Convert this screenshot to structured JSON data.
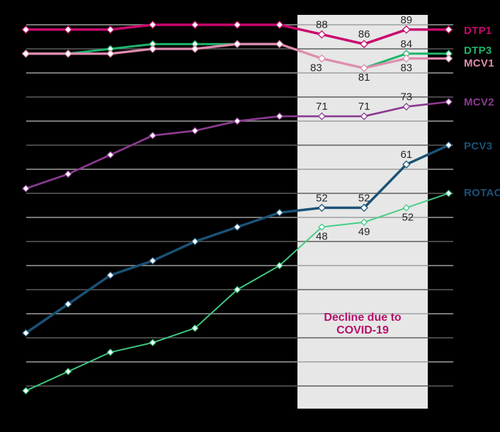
{
  "page": {
    "background_color": "#000000"
  },
  "chart_data": {
    "type": "line",
    "title": "",
    "x_axis": {
      "num_points": 11,
      "tick_labels_visible": false
    },
    "y_axis": {
      "min": 15,
      "max": 90,
      "gridline_step": 5,
      "tick_labels_visible": false,
      "grid_on": true
    },
    "grid": {
      "major_color": "#9f9f9f",
      "minor_color": "#5e5e5e"
    },
    "highlight_band": {
      "meaning": "COVID-19 decline period",
      "color": "#e6e7e6",
      "covers_point_indices": [
        7,
        8,
        9
      ]
    },
    "annotation": {
      "line1": "Decline due to",
      "line2": "COVID-19",
      "color": "#b5116b"
    },
    "point_label_color": "#262626",
    "marker_style": "white-filled diamond outlined in series color",
    "series": [
      {
        "name": "DTP1",
        "line_color": "#c9076f",
        "label_color": "#c9076f",
        "values": [
          89,
          89,
          89,
          90,
          90,
          90,
          90,
          88,
          86,
          89,
          89
        ],
        "point_labels": [
          {
            "index": 7,
            "text": "88",
            "position": "above"
          },
          {
            "index": 8,
            "text": "86",
            "position": "above"
          },
          {
            "index": 9,
            "text": "89",
            "position": "above"
          }
        ]
      },
      {
        "name": "DTP3",
        "line_color": "#1db56a",
        "label_color": "#1db56a",
        "values": [
          84,
          84,
          85,
          86,
          86,
          86,
          86,
          83,
          81,
          84,
          84
        ],
        "point_labels": [
          {
            "index": 9,
            "text": "84",
            "position": "above"
          }
        ]
      },
      {
        "name": "MCV1",
        "line_color": "#e18cb0",
        "label_color": "#e18cb0",
        "values": [
          84,
          84,
          84,
          85,
          85,
          86,
          86,
          83,
          81,
          83,
          83
        ],
        "point_labels": [
          {
            "index": 7,
            "text": "83",
            "position": "below",
            "dx": -8
          },
          {
            "index": 8,
            "text": "81",
            "position": "below"
          },
          {
            "index": 9,
            "text": "83",
            "position": "below"
          }
        ]
      },
      {
        "name": "MCV2",
        "line_color": "#8b3a90",
        "label_color": "#8b3a90",
        "values": [
          56,
          59,
          63,
          67,
          68,
          70,
          71,
          71,
          71,
          73,
          74
        ],
        "point_labels": [
          {
            "index": 7,
            "text": "71",
            "position": "above"
          },
          {
            "index": 8,
            "text": "71",
            "position": "above"
          },
          {
            "index": 9,
            "text": "73",
            "position": "above"
          }
        ]
      },
      {
        "name": "PCV3",
        "line_color": "#1a5276",
        "label_color": "#1a5276",
        "values": [
          26,
          32,
          38,
          41,
          45,
          48,
          51,
          52,
          52,
          61,
          65
        ],
        "point_labels": [
          {
            "index": 7,
            "text": "52",
            "position": "above"
          },
          {
            "index": 8,
            "text": "52",
            "position": "above"
          },
          {
            "index": 9,
            "text": "61",
            "position": "above"
          }
        ]
      },
      {
        "name": "ROTAC",
        "line_color": "#41cd84",
        "label_color": "#1a5276",
        "values": [
          14,
          18,
          22,
          24,
          27,
          35,
          40,
          48,
          49,
          52,
          55
        ],
        "point_labels": [
          {
            "index": 7,
            "text": "48",
            "position": "below"
          },
          {
            "index": 8,
            "text": "49",
            "position": "below"
          },
          {
            "index": 9,
            "text": "52",
            "position": "below",
            "dx": 2
          }
        ]
      }
    ]
  },
  "legend": {
    "items": [
      {
        "label": "DTP1",
        "color": "#c9076f"
      },
      {
        "label": "DTP3",
        "color": "#1db56a"
      },
      {
        "label": "MCV1",
        "color": "#e18cb0"
      },
      {
        "label": "MCV2",
        "color": "#8b3a90"
      },
      {
        "label": "PCV3",
        "color": "#1a5276"
      },
      {
        "label": "ROTAC",
        "color": "#1a5276"
      }
    ]
  }
}
